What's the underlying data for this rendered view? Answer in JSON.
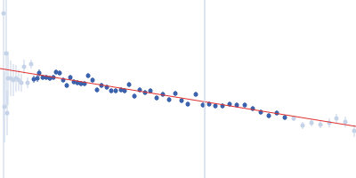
{
  "chart_data": {
    "type": "scatter",
    "xlim": [
      0,
      400
    ],
    "ylim": [
      0,
      200
    ],
    "xticks": [],
    "yticks": [],
    "tick_labels": false,
    "grid": false,
    "series": [
      {
        "type": "scatter",
        "color": "#c5d3e8",
        "marker": "circle",
        "x": [
          4,
          7,
          5,
          8,
          9,
          12,
          15,
          18,
          21,
          24,
          27,
          31,
          35
        ],
        "values": [
          185,
          140,
          80,
          73,
          112,
          112,
          110,
          112,
          110,
          107,
          125,
          107,
          128
        ],
        "errors": [
          200,
          60,
          40,
          25,
          30,
          20,
          18,
          15,
          12,
          10,
          8,
          6,
          5
        ]
      },
      {
        "type": "scatter",
        "color": "#3a62ad",
        "marker": "circle",
        "x": [
          38,
          42,
          44,
          48,
          52,
          56,
          60,
          63,
          67,
          71,
          75,
          79,
          83,
          87,
          91,
          95,
          99,
          104,
          109,
          114,
          120,
          125,
          130,
          136,
          140,
          145,
          151,
          157,
          163,
          169,
          176,
          183,
          190,
          197,
          204,
          211,
          220,
          228,
          235,
          242,
          250,
          258,
          266,
          275,
          284,
          293,
          302,
          311,
          320
        ],
        "values": [
          111,
          112,
          118,
          113,
          113,
          112,
          113,
          119,
          118,
          110,
          104,
          113,
          108,
          107,
          106,
          106,
          115,
          110,
          99,
          104,
          102,
          98,
          98,
          99,
          98,
          105,
          92,
          99,
          96,
          98,
          90,
          94,
          88,
          95,
          87,
          83,
          94,
          82,
          83,
          81,
          81,
          83,
          82,
          82,
          78,
          74,
          70,
          73,
          68
        ],
        "errors": [
          4,
          4,
          4,
          3,
          3,
          3,
          3,
          3,
          3,
          3,
          3,
          3,
          3,
          3,
          3,
          3,
          3,
          3,
          3,
          3,
          3,
          3,
          3,
          3,
          3,
          3,
          3,
          3,
          3,
          3,
          3,
          3,
          3,
          3,
          3,
          3,
          3,
          3,
          3,
          3,
          3,
          3,
          3,
          3,
          3,
          3,
          3,
          3,
          3
        ]
      },
      {
        "type": "scatter",
        "color": "#c5d3e8",
        "marker": "circle",
        "x": [
          330,
          340,
          350,
          360,
          370,
          378,
          388,
          398
        ],
        "values": [
          67,
          59,
          62,
          60,
          62,
          67,
          63,
          53
        ],
        "errors": [
          3,
          4,
          4,
          4,
          5,
          5,
          6,
          7
        ]
      },
      {
        "type": "line",
        "color": "#e03030",
        "line_style": "solid",
        "x": [
          0,
          400
        ],
        "values": [
          123,
          58
        ]
      },
      {
        "type": "line",
        "color": "#c5d3e8",
        "line_style": "solid",
        "x": [
          230,
          230
        ],
        "values": [
          0,
          200
        ]
      }
    ]
  }
}
